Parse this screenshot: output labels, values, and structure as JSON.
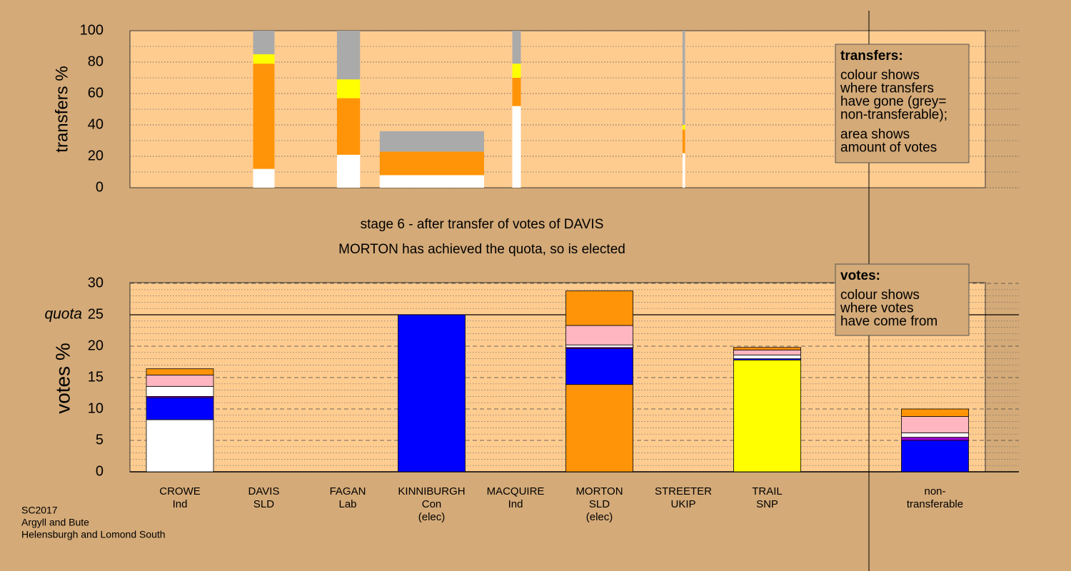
{
  "chart_data": [
    {
      "type": "marimekko",
      "ylabel": "transfers %",
      "xlim": [
        0,
        100
      ],
      "ylim": [
        0,
        100
      ],
      "yticks": [
        0,
        20,
        40,
        60,
        80,
        100
      ],
      "yminor_step": 10,
      "grid": true,
      "bars": [
        {
          "x": [
            14.4,
            16.9
          ],
          "segments": [
            {
              "color": "#ffffff",
              "value": 12
            },
            {
              "color": "#ff9408",
              "value": 67
            },
            {
              "color": "#ffff00",
              "value": 6
            },
            {
              "color": "#aaaaaa",
              "value": 15
            }
          ]
        },
        {
          "x": [
            24.2,
            26.9
          ],
          "segments": [
            {
              "color": "#ffffff",
              "value": 21
            },
            {
              "color": "#ff9408",
              "value": 36
            },
            {
              "color": "#ffff00",
              "value": 12
            },
            {
              "color": "#aaaaaa",
              "value": 31
            }
          ]
        },
        {
          "x": [
            29.2,
            41.4
          ],
          "segments": [
            {
              "color": "#ffffff",
              "value": 8
            },
            {
              "color": "#ff9408",
              "value": 15
            },
            {
              "color": "#aaaaaa",
              "value": 13
            }
          ]
        },
        {
          "x": [
            44.7,
            45.7
          ],
          "segments": [
            {
              "color": "#ffffff",
              "value": 52
            },
            {
              "color": "#ff9408",
              "value": 18
            },
            {
              "color": "#ffff00",
              "value": 9
            },
            {
              "color": "#aaaaaa",
              "value": 21
            }
          ]
        },
        {
          "x": [
            64.6,
            64.9
          ],
          "segments": [
            {
              "color": "#ffffff",
              "value": 22
            },
            {
              "color": "#ff9408",
              "value": 15
            },
            {
              "color": "#ffff00",
              "value": 3
            },
            {
              "color": "#aaaaaa",
              "value": 60
            }
          ]
        }
      ],
      "legend": {
        "title": "transfers:",
        "paragraphs": [
          [
            "colour shows",
            "where transfers",
            "have gone (grey=",
            "non-transferable);"
          ],
          [
            "area shows",
            "amount of votes"
          ]
        ]
      }
    },
    {
      "type": "bar",
      "title": "stage 6 - after transfer of votes of DAVIS",
      "subtitle": "MORTON has achieved the quota, so is elected",
      "ylabel": "votes %",
      "ylim": [
        0,
        30
      ],
      "yticks": [
        0,
        5,
        10,
        15,
        20,
        25,
        30
      ],
      "yminor_step": 1,
      "grid": true,
      "quota": 25,
      "quota_label": "quota",
      "categories": [
        [
          "CROWE",
          "Ind"
        ],
        [
          "DAVIS",
          "SLD"
        ],
        [
          "FAGAN",
          "Lab"
        ],
        [
          "KINNIBURGH",
          "Con",
          "(elec)"
        ],
        [
          "MACQUIRE",
          "Ind"
        ],
        [
          "MORTON",
          "SLD",
          "(elec)"
        ],
        [
          "STREETER",
          "UKIP"
        ],
        [
          "TRAIL",
          "SNP"
        ],
        null,
        [
          "non-",
          "transferable"
        ]
      ],
      "bars": [
        {
          "segments": [
            {
              "color": "#ffffff",
              "value": 8.3
            },
            {
              "color": "#0000ff",
              "value": 3.5
            },
            {
              "color": "#9900cc",
              "value": 0.2
            },
            {
              "color": "#ffffff",
              "value": 1.6
            },
            {
              "color": "#ffb6c1",
              "value": 1.8
            },
            {
              "color": "#ff9408",
              "value": 1.0
            }
          ]
        },
        {
          "segments": []
        },
        {
          "segments": []
        },
        {
          "segments": [
            {
              "color": "#0000ff",
              "value": 25
            }
          ]
        },
        {
          "segments": []
        },
        {
          "segments": [
            {
              "color": "#ff9408",
              "value": 13.9
            },
            {
              "color": "#0000ff",
              "value": 5.7
            },
            {
              "color": "#9900cc",
              "value": 0.2
            },
            {
              "color": "#ffffff",
              "value": 0.4
            },
            {
              "color": "#ffb6c1",
              "value": 3.1
            },
            {
              "color": "#ff9408",
              "value": 5.5
            }
          ]
        },
        {
          "segments": []
        },
        {
          "segments": [
            {
              "color": "#ffff00",
              "value": 17.8
            },
            {
              "color": "#0000ff",
              "value": 0.2
            },
            {
              "color": "#ffffff",
              "value": 0.6
            },
            {
              "color": "#ffb6c1",
              "value": 0.8
            },
            {
              "color": "#ff9408",
              "value": 0.4
            }
          ]
        },
        null,
        {
          "segments": [
            {
              "color": "#0000ff",
              "value": 5.0
            },
            {
              "color": "#9900cc",
              "value": 0.5
            },
            {
              "color": "#ffffff",
              "value": 0.7
            },
            {
              "color": "#ffb6c1",
              "value": 2.6
            },
            {
              "color": "#ff9408",
              "value": 1.2
            }
          ]
        }
      ],
      "legend": {
        "title": "votes:",
        "paragraphs": [
          [
            "colour shows",
            "where votes",
            "have come from"
          ]
        ]
      }
    }
  ],
  "footer": [
    "SC2017",
    "Argyll and Bute",
    "Helensburgh and Lomond South"
  ]
}
